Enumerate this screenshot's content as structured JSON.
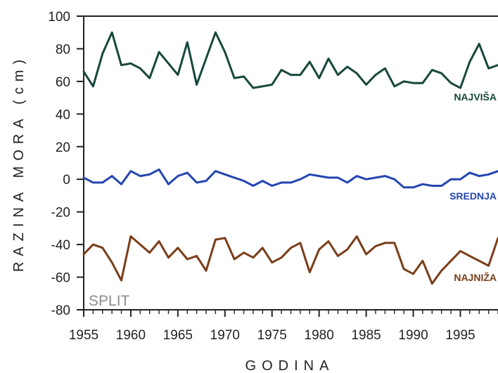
{
  "chart_data": {
    "type": "line",
    "title": "",
    "xlabel": "GODINA",
    "ylabel": "RAZINA  MORA  (cm)",
    "xlim": [
      1955,
      1999
    ],
    "ylim": [
      -80,
      100
    ],
    "x_ticks": [
      "1955",
      "1960",
      "1965",
      "1970",
      "1975",
      "1980",
      "1985",
      "1990",
      "1995"
    ],
    "y_ticks": [
      "100",
      "80",
      "60",
      "40",
      "20",
      "0",
      "-20",
      "-40",
      "-60",
      "-80"
    ],
    "grid": false,
    "annotation": "SPLIT",
    "annotation_color": "#8c8c8c",
    "x": [
      1955,
      1956,
      1957,
      1958,
      1959,
      1960,
      1961,
      1962,
      1963,
      1964,
      1965,
      1966,
      1967,
      1968,
      1969,
      1970,
      1971,
      1972,
      1973,
      1974,
      1975,
      1976,
      1977,
      1978,
      1979,
      1980,
      1981,
      1982,
      1983,
      1984,
      1985,
      1986,
      1987,
      1988,
      1989,
      1990,
      1991,
      1992,
      1993,
      1994,
      1995,
      1996,
      1997,
      1998,
      1999
    ],
    "series": [
      {
        "name": "NAJVIŠA",
        "color": "#17473d",
        "values": [
          66,
          57,
          77,
          90,
          70,
          71,
          68,
          62,
          78,
          71,
          64,
          84,
          58,
          74,
          90,
          78,
          62,
          63,
          56,
          57,
          58,
          67,
          64,
          64,
          72,
          62,
          74,
          64,
          69,
          65,
          58,
          64,
          68,
          57,
          60,
          59,
          59,
          67,
          65,
          59,
          56,
          72,
          83,
          68,
          70
        ]
      },
      {
        "name": "SREDNJA",
        "color": "#2346b0",
        "values": [
          1,
          -2,
          -2,
          2,
          -3,
          5,
          2,
          3,
          6,
          -3,
          2,
          4,
          -2,
          -1,
          5,
          3,
          1,
          -1,
          -4,
          -1,
          -4,
          -2,
          -2,
          0,
          3,
          2,
          1,
          1,
          -2,
          2,
          0,
          1,
          2,
          0,
          -5,
          -5,
          -3,
          -4,
          -4,
          0,
          0,
          4,
          2,
          3,
          5
        ]
      },
      {
        "name": "NAJNIŽA",
        "color": "#7a3d18",
        "values": [
          -46,
          -40,
          -42,
          -51,
          -62,
          -35,
          -40,
          -45,
          -38,
          -48,
          -42,
          -49,
          -47,
          -56,
          -37,
          -36,
          -49,
          -45,
          -48,
          -42,
          -51,
          -48,
          -42,
          -39,
          -57,
          -43,
          -38,
          -47,
          -43,
          -35,
          -46,
          -41,
          -39,
          -39,
          -55,
          -58,
          -50,
          -64,
          -56,
          -50,
          -44,
          -47,
          -50,
          -53,
          -36
        ]
      }
    ]
  }
}
